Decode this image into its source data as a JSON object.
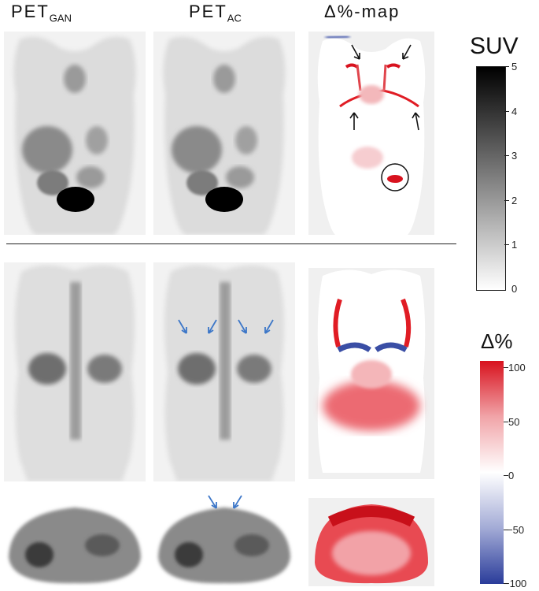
{
  "headers": {
    "col1_main": "PET",
    "col1_sub": "GAN",
    "col2_main": "PET",
    "col2_sub": "AC",
    "col3": "Δ%-map"
  },
  "suv_colorbar": {
    "title": "SUV",
    "ticks": [
      "5",
      "4",
      "3",
      "2",
      "1",
      "0"
    ],
    "range": [
      0,
      5
    ],
    "colors": [
      "#ffffff",
      "#000000"
    ]
  },
  "delta_colorbar": {
    "title": "Δ%",
    "ticks": [
      "100",
      "50",
      "0",
      "−50",
      "−100"
    ],
    "range": [
      -100,
      100
    ],
    "colors": [
      "#2a3c9a",
      "#ffffff",
      "#d8121e"
    ]
  },
  "annotation_colors": {
    "black_arrows": "#111111",
    "blue_arrows": "#3d77c8"
  }
}
